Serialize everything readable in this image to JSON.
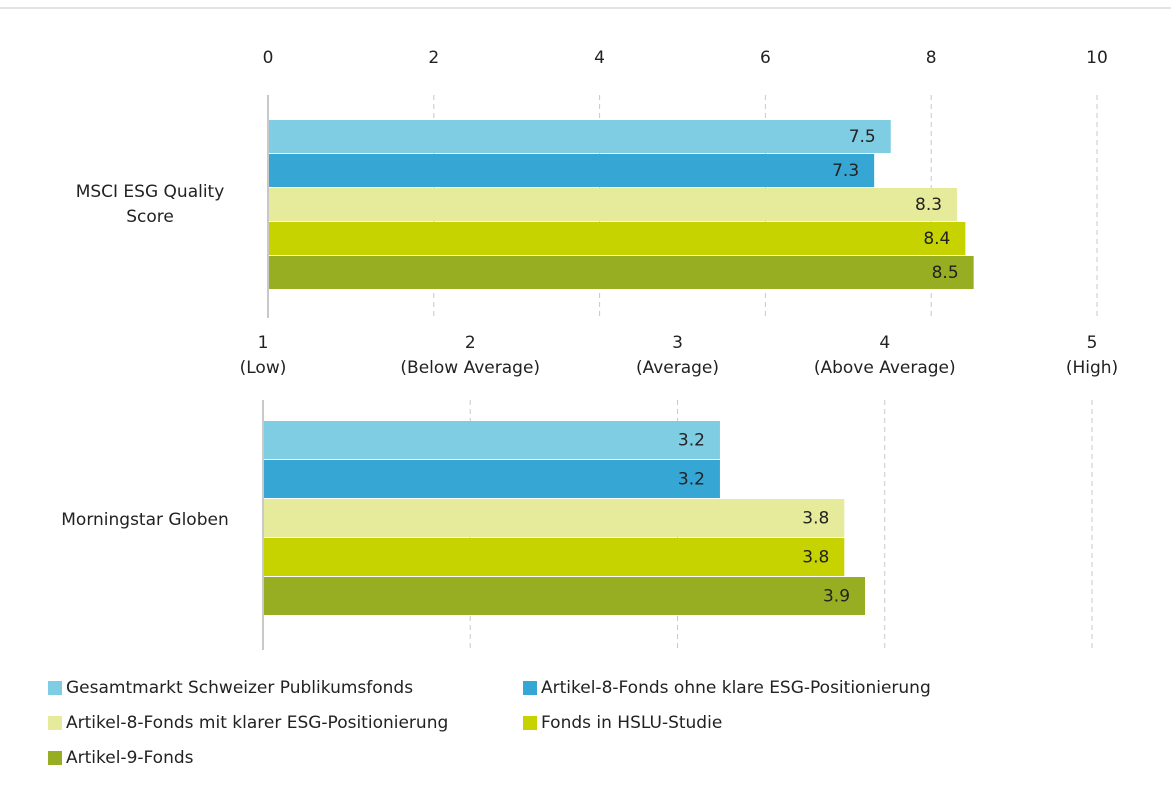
{
  "chart_data": {
    "type": "bar",
    "orientation": "horizontal",
    "categories": [
      "MSCI ESG Quality Score",
      "Morningstar Globen"
    ],
    "axes": [
      {
        "xlim": [
          0,
          10
        ],
        "xticks": [
          0,
          2,
          4,
          6,
          8,
          10
        ]
      },
      {
        "xlim": [
          1,
          5
        ],
        "xticks": [
          {
            "value": 1,
            "label": "1\n(Low)"
          },
          {
            "value": 2,
            "label": "2\n(Below Average)"
          },
          {
            "value": 3,
            "label": "3\n(Average)"
          },
          {
            "value": 4,
            "label": "4\n(Above Average)"
          },
          {
            "value": 5,
            "label": "5\n(High)"
          }
        ]
      }
    ],
    "series": [
      {
        "name": "Gesamtmarkt Schweizer Publikumsfonds",
        "color": "#7fcde3",
        "values": [
          7.5,
          3.2
        ]
      },
      {
        "name": "Artikel-8-Fonds ohne klare ESG-Positionierung",
        "color": "#36a6d4",
        "values": [
          7.3,
          3.2
        ]
      },
      {
        "name": "Artikel-8-Fonds mit klarer ESG-Positionierung",
        "color": "#e5eb9a",
        "values": [
          8.3,
          3.8
        ]
      },
      {
        "name": "Fonds in HSLU-Studie",
        "color": "#c7d300",
        "values": [
          8.4,
          3.8
        ]
      },
      {
        "name": "Artikel-9-Fonds",
        "color": "#97ae22",
        "values": [
          8.5,
          3.9
        ]
      }
    ],
    "grid": true
  }
}
